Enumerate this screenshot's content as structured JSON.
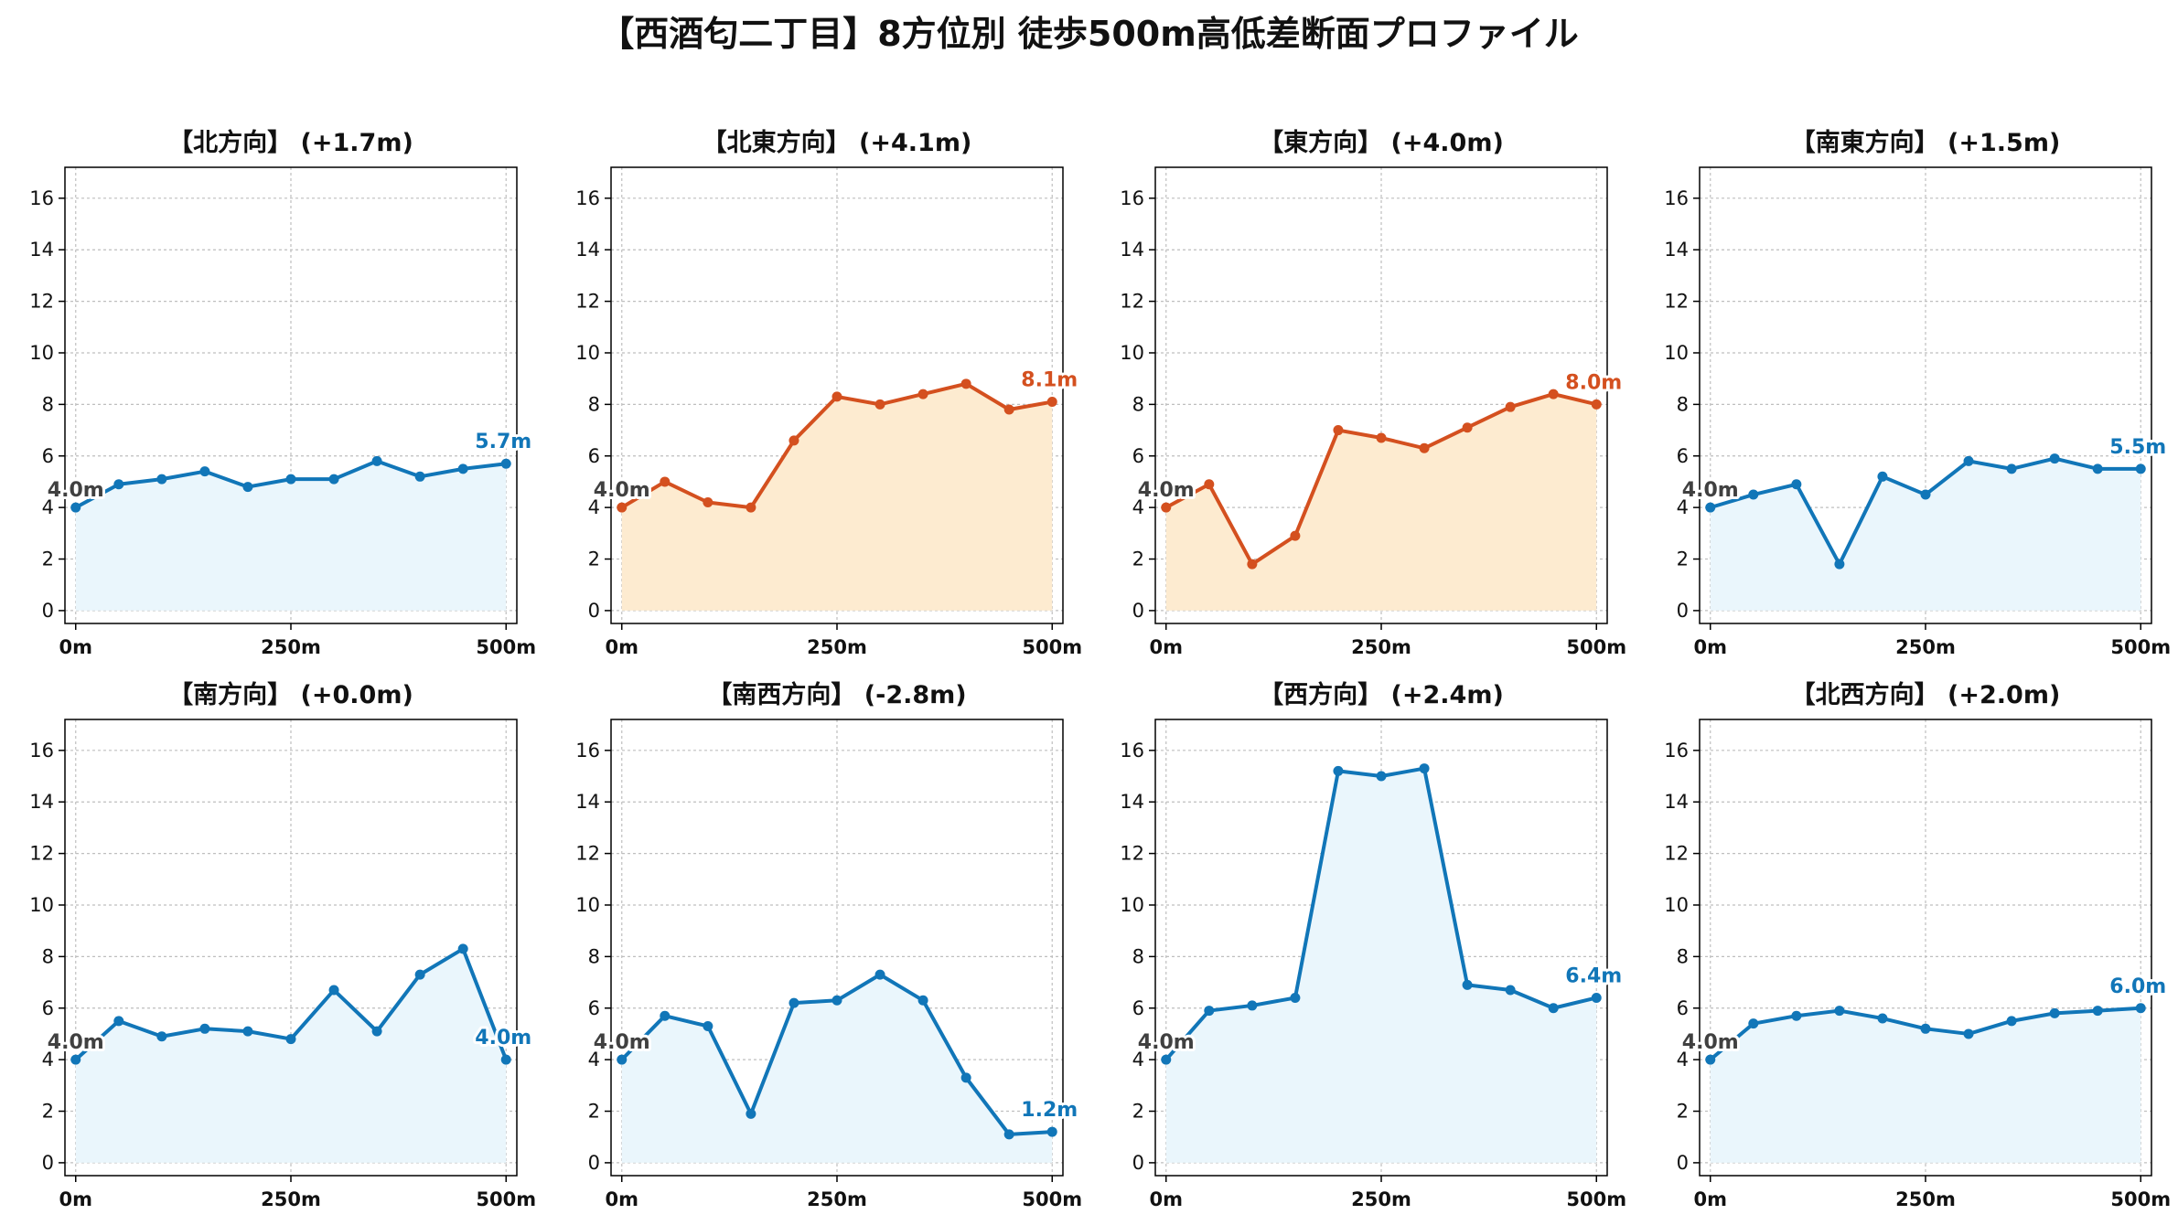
{
  "suptitle": "【西酒匂二丁目】8方位別 徒歩500m高低差断面プロファイル",
  "colors": {
    "up": "#d4501f",
    "upFill": "#fdebd0",
    "flat": "#1176b8",
    "flatFill": "#eaf6fc",
    "startLabel": "#404040",
    "grid": "#bfbfbf"
  },
  "chart_data": [
    {
      "type": "area",
      "title": "【北方向】 (+1.7m)",
      "x": [
        0,
        50,
        100,
        150,
        200,
        250,
        300,
        350,
        400,
        450,
        500
      ],
      "y": [
        4.0,
        4.9,
        5.1,
        5.4,
        4.8,
        5.1,
        5.1,
        5.8,
        5.2,
        5.5,
        5.7
      ],
      "start_label": "4.0m",
      "end_label": "5.7m",
      "trend": "flat",
      "xticks": [
        "0m",
        "250m",
        "500m"
      ],
      "yticks": [
        0,
        2,
        4,
        6,
        8,
        10,
        12,
        14,
        16
      ],
      "ylim": [
        -0.5,
        17.2
      ],
      "grid": true
    },
    {
      "type": "area",
      "title": "【北東方向】 (+4.1m)",
      "x": [
        0,
        50,
        100,
        150,
        200,
        250,
        300,
        350,
        400,
        450,
        500
      ],
      "y": [
        4.0,
        5.0,
        4.2,
        4.0,
        6.6,
        8.3,
        8.0,
        8.4,
        8.8,
        7.8,
        8.1
      ],
      "start_label": "4.0m",
      "end_label": "8.1m",
      "trend": "up",
      "xticks": [
        "0m",
        "250m",
        "500m"
      ],
      "yticks": [
        0,
        2,
        4,
        6,
        8,
        10,
        12,
        14,
        16
      ],
      "ylim": [
        -0.5,
        17.2
      ],
      "grid": true
    },
    {
      "type": "area",
      "title": "【東方向】 (+4.0m)",
      "x": [
        0,
        50,
        100,
        150,
        200,
        250,
        300,
        350,
        400,
        450,
        500
      ],
      "y": [
        4.0,
        4.9,
        1.8,
        2.9,
        7.0,
        6.7,
        6.3,
        7.1,
        7.9,
        8.4,
        8.0
      ],
      "start_label": "4.0m",
      "end_label": "8.0m",
      "trend": "up",
      "xticks": [
        "0m",
        "250m",
        "500m"
      ],
      "yticks": [
        0,
        2,
        4,
        6,
        8,
        10,
        12,
        14,
        16
      ],
      "ylim": [
        -0.5,
        17.2
      ],
      "grid": true
    },
    {
      "type": "area",
      "title": "【南東方向】 (+1.5m)",
      "x": [
        0,
        50,
        100,
        150,
        200,
        250,
        300,
        350,
        400,
        450,
        500
      ],
      "y": [
        4.0,
        4.5,
        4.9,
        1.8,
        5.2,
        4.5,
        5.8,
        5.5,
        5.9,
        5.5,
        5.5
      ],
      "start_label": "4.0m",
      "end_label": "5.5m",
      "trend": "flat",
      "xticks": [
        "0m",
        "250m",
        "500m"
      ],
      "yticks": [
        0,
        2,
        4,
        6,
        8,
        10,
        12,
        14,
        16
      ],
      "ylim": [
        -0.5,
        17.2
      ],
      "grid": true
    },
    {
      "type": "area",
      "title": "【南方向】 (+0.0m)",
      "x": [
        0,
        50,
        100,
        150,
        200,
        250,
        300,
        350,
        400,
        450,
        500
      ],
      "y": [
        4.0,
        5.5,
        4.9,
        5.2,
        5.1,
        4.8,
        6.7,
        5.1,
        7.3,
        8.3,
        4.0
      ],
      "start_label": "4.0m",
      "end_label": "4.0m",
      "trend": "flat",
      "xticks": [
        "0m",
        "250m",
        "500m"
      ],
      "yticks": [
        0,
        2,
        4,
        6,
        8,
        10,
        12,
        14,
        16
      ],
      "ylim": [
        -0.5,
        17.2
      ],
      "grid": true
    },
    {
      "type": "area",
      "title": "【南西方向】 (-2.8m)",
      "x": [
        0,
        50,
        100,
        150,
        200,
        250,
        300,
        350,
        400,
        450,
        500
      ],
      "y": [
        4.0,
        5.7,
        5.3,
        1.9,
        6.2,
        6.3,
        7.3,
        6.3,
        3.3,
        1.1,
        1.2
      ],
      "start_label": "4.0m",
      "end_label": "1.2m",
      "trend": "flat",
      "xticks": [
        "0m",
        "250m",
        "500m"
      ],
      "yticks": [
        0,
        2,
        4,
        6,
        8,
        10,
        12,
        14,
        16
      ],
      "ylim": [
        -0.5,
        17.2
      ],
      "grid": true
    },
    {
      "type": "area",
      "title": "【西方向】 (+2.4m)",
      "x": [
        0,
        50,
        100,
        150,
        200,
        250,
        300,
        350,
        400,
        450,
        500
      ],
      "y": [
        4.0,
        5.9,
        6.1,
        6.4,
        15.2,
        15.0,
        15.3,
        6.9,
        6.7,
        6.0,
        6.4
      ],
      "start_label": "4.0m",
      "end_label": "6.4m",
      "trend": "flat",
      "xticks": [
        "0m",
        "250m",
        "500m"
      ],
      "yticks": [
        0,
        2,
        4,
        6,
        8,
        10,
        12,
        14,
        16
      ],
      "ylim": [
        -0.5,
        17.2
      ],
      "grid": true
    },
    {
      "type": "area",
      "title": "【北西方向】 (+2.0m)",
      "x": [
        0,
        50,
        100,
        150,
        200,
        250,
        300,
        350,
        400,
        450,
        500
      ],
      "y": [
        4.0,
        5.4,
        5.7,
        5.9,
        5.6,
        5.2,
        5.0,
        5.5,
        5.8,
        5.9,
        6.0
      ],
      "start_label": "4.0m",
      "end_label": "6.0m",
      "trend": "flat",
      "xticks": [
        "0m",
        "250m",
        "500m"
      ],
      "yticks": [
        0,
        2,
        4,
        6,
        8,
        10,
        12,
        14,
        16
      ],
      "ylim": [
        -0.5,
        17.2
      ],
      "grid": true
    }
  ]
}
